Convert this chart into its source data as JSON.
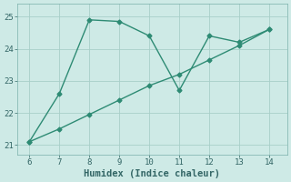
{
  "series1_x": [
    6,
    7,
    8,
    9,
    10,
    11,
    12,
    13,
    14
  ],
  "series1_y": [
    21.1,
    22.6,
    24.9,
    24.85,
    24.4,
    22.7,
    24.4,
    24.2,
    24.6
  ],
  "series2_x": [
    6,
    7,
    8,
    9,
    10,
    11,
    12,
    13,
    14
  ],
  "series2_y": [
    21.1,
    21.5,
    21.95,
    22.4,
    22.85,
    23.2,
    23.65,
    24.1,
    24.6
  ],
  "line_color": "#2e8b74",
  "background_color": "#ceeae6",
  "grid_color": "#a8cfc9",
  "xlabel": "Humidex (Indice chaleur)",
  "xlim": [
    5.6,
    14.6
  ],
  "ylim": [
    20.7,
    25.4
  ],
  "yticks": [
    21,
    22,
    23,
    24,
    25
  ],
  "xticks": [
    6,
    7,
    8,
    9,
    10,
    11,
    12,
    13,
    14
  ],
  "marker": "D",
  "markersize": 2.5,
  "linewidth": 1.0,
  "tick_color": "#336666",
  "xlabel_fontsize": 7.5,
  "tick_fontsize": 6.5,
  "spine_color": "#7ab0aa"
}
